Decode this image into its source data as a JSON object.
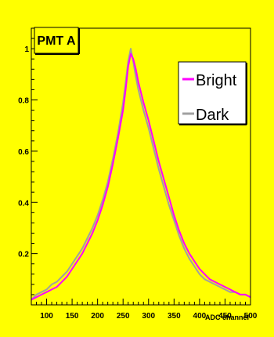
{
  "colors": {
    "canvas_bg": "#ffff00",
    "frame_bg": "#ffff00",
    "bright": "#ff00ff",
    "dark": "#a0a0a0"
  },
  "chart_data": {
    "type": "line",
    "title": "PMT A",
    "xlabel": "ADC channel",
    "ylabel": "",
    "xlim": [
      70,
      500
    ],
    "ylim": [
      0,
      1.08
    ],
    "grid": false,
    "legend_position": "top-right",
    "x_ticks": [
      100,
      150,
      200,
      250,
      300,
      350,
      400,
      450,
      500
    ],
    "y_ticks": [
      0.2,
      0.4,
      0.6,
      0.8,
      1
    ],
    "x": [
      70,
      80,
      90,
      100,
      110,
      120,
      130,
      140,
      150,
      160,
      170,
      180,
      190,
      200,
      210,
      220,
      230,
      240,
      250,
      255,
      260,
      265,
      270,
      275,
      280,
      290,
      300,
      310,
      320,
      330,
      340,
      350,
      360,
      370,
      380,
      390,
      400,
      410,
      420,
      430,
      440,
      450,
      460,
      470,
      480,
      490,
      500
    ],
    "series": [
      {
        "name": "Bright",
        "color": "#ff00ff",
        "values": [
          0.02,
          0.03,
          0.04,
          0.05,
          0.06,
          0.07,
          0.09,
          0.11,
          0.14,
          0.17,
          0.2,
          0.24,
          0.28,
          0.33,
          0.39,
          0.46,
          0.55,
          0.65,
          0.76,
          0.84,
          0.93,
          0.98,
          0.96,
          0.92,
          0.87,
          0.79,
          0.72,
          0.64,
          0.56,
          0.49,
          0.42,
          0.35,
          0.29,
          0.24,
          0.2,
          0.17,
          0.14,
          0.12,
          0.1,
          0.09,
          0.08,
          0.07,
          0.06,
          0.05,
          0.04,
          0.04,
          0.03
        ]
      },
      {
        "name": "Dark",
        "color": "#a0a0a0",
        "values": [
          0.02,
          0.04,
          0.05,
          0.06,
          0.08,
          0.09,
          0.11,
          0.13,
          0.16,
          0.19,
          0.22,
          0.26,
          0.3,
          0.35,
          0.41,
          0.48,
          0.57,
          0.67,
          0.79,
          0.87,
          0.95,
          1.0,
          0.95,
          0.89,
          0.84,
          0.76,
          0.69,
          0.61,
          0.53,
          0.46,
          0.39,
          0.33,
          0.27,
          0.22,
          0.18,
          0.15,
          0.12,
          0.1,
          0.09,
          0.08,
          0.07,
          0.06,
          0.05,
          0.05,
          0.04,
          0.04,
          0.03
        ]
      }
    ]
  }
}
